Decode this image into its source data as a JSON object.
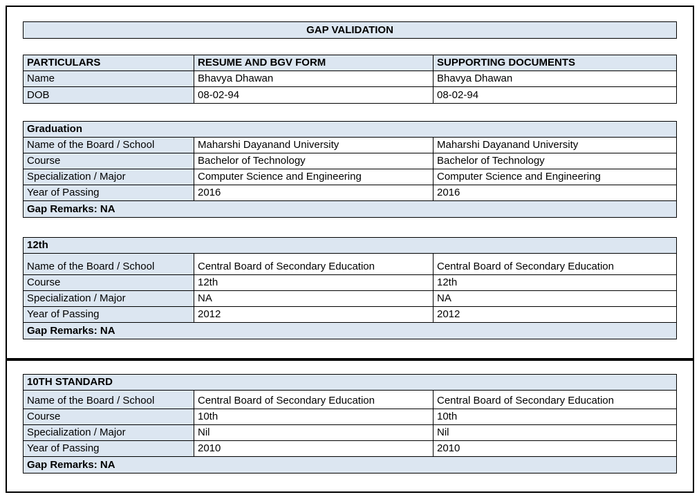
{
  "title_bar": {
    "text": "GAP VALIDATION"
  },
  "colors": {
    "header_fill": "#dce6f1",
    "border": "#000000",
    "page_background": "#ffffff"
  },
  "particulars_table": {
    "headers": {
      "particulars": "PARTICULARS",
      "resume": "RESUME AND BGV FORM",
      "supporting": "SUPPORTING DOCUMENTS"
    },
    "rows": [
      {
        "label": "Name",
        "resume": "Bhavya Dhawan",
        "supporting": "Bhavya Dhawan"
      },
      {
        "label": "DOB",
        "resume": "08-02-94",
        "supporting": "08-02-94"
      }
    ]
  },
  "sections": [
    {
      "title": "Graduation",
      "rows": [
        {
          "label": "Name of the Board / School",
          "resume": "Maharshi Dayanand University",
          "supporting": "Maharshi Dayanand University"
        },
        {
          "label": "Course",
          "resume": "Bachelor of Technology",
          "supporting": "Bachelor of Technology"
        },
        {
          "label": "Specialization / Major",
          "resume": "Computer Science and Engineering",
          "supporting": "Computer Science and Engineering"
        },
        {
          "label": "Year of Passing",
          "resume": "2016",
          "supporting": "2016"
        }
      ],
      "gap_remarks": "Gap Remarks: NA"
    },
    {
      "title": "12th",
      "rows": [
        {
          "label": "Name of the Board / School",
          "resume": "Central Board of Secondary Education",
          "supporting": "Central Board of Secondary Education"
        },
        {
          "label": "Course",
          "resume": "12th",
          "supporting": "12th"
        },
        {
          "label": "Specialization / Major",
          "resume": "NA",
          "supporting": "NA"
        },
        {
          "label": "Year of Passing",
          "resume": "2012",
          "supporting": "2012"
        }
      ],
      "gap_remarks": "Gap Remarks: NA"
    },
    {
      "title": "10TH STANDARD",
      "rows": [
        {
          "label": "Name of the Board / School",
          "resume": "Central Board of Secondary Education",
          "supporting": "Central Board of Secondary Education"
        },
        {
          "label": "Course",
          "resume": "10th",
          "supporting": "10th"
        },
        {
          "label": "Specialization / Major",
          "resume": "Nil",
          "supporting": "Nil"
        },
        {
          "label": "Year of Passing",
          "resume": "2010",
          "supporting": "2010"
        }
      ],
      "gap_remarks": "Gap Remarks: NA"
    }
  ]
}
